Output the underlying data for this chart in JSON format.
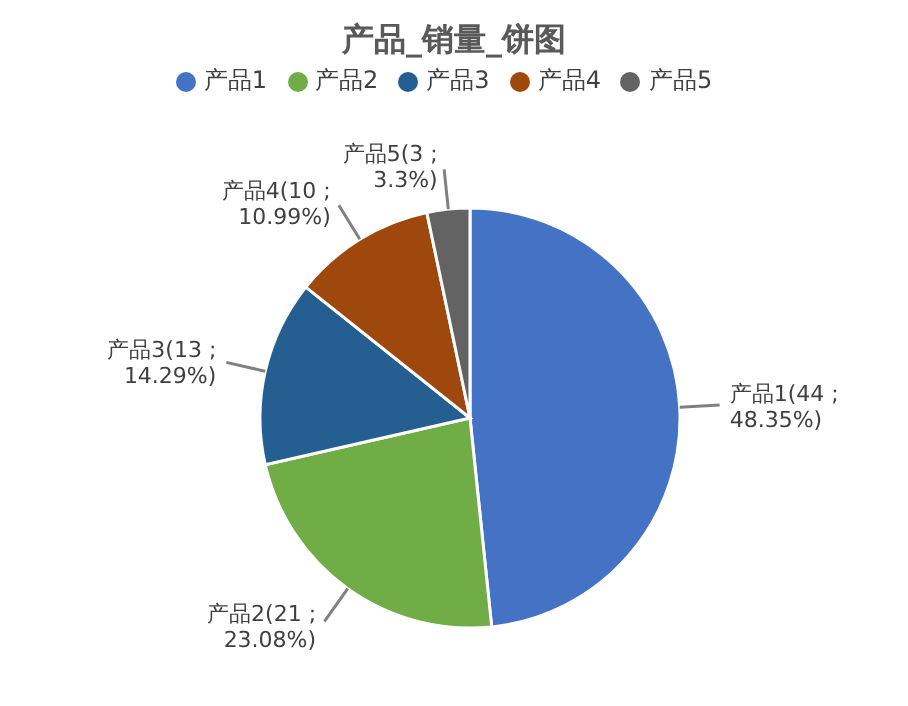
{
  "chart_data": {
    "type": "pie",
    "title": "产品_销量_饼图",
    "categories": [
      "产品1",
      "产品2",
      "产品3",
      "产品4",
      "产品5"
    ],
    "values": [
      44,
      21,
      13,
      10,
      3
    ],
    "colors": [
      "#4472c4",
      "#70ad47",
      "#255e91",
      "#9e480e",
      "#636363"
    ],
    "value_labels": [
      "产品1(44 ; 48.35%)",
      "产品2(21 ; 23.08%)",
      "产品3(13 ; 14.29%)",
      "产品4(10 ; 10.99%)",
      "产品5(3 ; 3.3%)"
    ],
    "legend": "top"
  }
}
